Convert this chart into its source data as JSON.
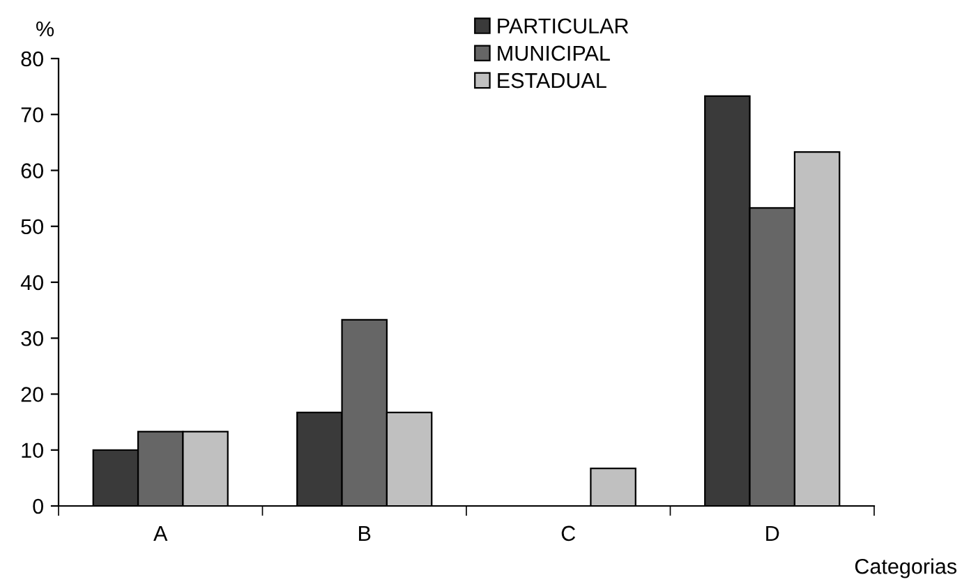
{
  "chart_data": {
    "type": "bar",
    "ylabel": "%",
    "xlabel": "Categorias",
    "categories": [
      "A",
      "B",
      "C",
      "D"
    ],
    "series": [
      {
        "name": "PARTICULAR",
        "color": "#3a3a3a",
        "values": [
          10,
          16.7,
          0,
          73.3
        ]
      },
      {
        "name": "MUNICIPAL",
        "color": "#666666",
        "values": [
          13.3,
          33.3,
          0,
          53.3
        ]
      },
      {
        "name": "ESTADUAL",
        "color": "#c0c0c0",
        "values": [
          13.3,
          16.7,
          6.7,
          63.3
        ]
      }
    ],
    "ylim": [
      0,
      80
    ],
    "yticks": [
      0,
      10,
      20,
      30,
      40,
      50,
      60,
      70,
      80
    ],
    "grid": false,
    "legend": "top"
  }
}
